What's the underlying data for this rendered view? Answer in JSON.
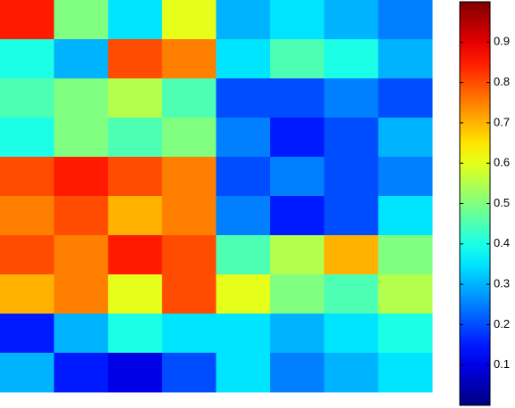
{
  "chart_data": {
    "type": "heatmap",
    "z": [
      [
        0.85,
        0.5,
        0.35,
        0.6,
        0.3,
        0.35,
        0.3,
        0.25
      ],
      [
        0.4,
        0.3,
        0.8,
        0.75,
        0.35,
        0.45,
        0.4,
        0.3
      ],
      [
        0.45,
        0.5,
        0.55,
        0.45,
        0.2,
        0.2,
        0.25,
        0.2
      ],
      [
        0.4,
        0.5,
        0.45,
        0.5,
        0.25,
        0.15,
        0.2,
        0.3
      ],
      [
        0.8,
        0.85,
        0.8,
        0.75,
        0.2,
        0.25,
        0.2,
        0.25
      ],
      [
        0.75,
        0.8,
        0.7,
        0.75,
        0.25,
        0.15,
        0.2,
        0.35
      ],
      [
        0.8,
        0.75,
        0.85,
        0.8,
        0.45,
        0.55,
        0.7,
        0.5
      ],
      [
        0.7,
        0.75,
        0.6,
        0.8,
        0.6,
        0.5,
        0.45,
        0.55
      ],
      [
        0.15,
        0.3,
        0.4,
        0.35,
        0.35,
        0.3,
        0.35,
        0.4
      ],
      [
        0.3,
        0.15,
        0.1,
        0.2,
        0.35,
        0.25,
        0.3,
        0.35
      ]
    ],
    "colormap": "jet",
    "clim": [
      0,
      1
    ],
    "cticks": [
      0.1,
      0.2,
      0.3,
      0.4,
      0.5,
      0.6,
      0.7,
      0.8,
      0.9
    ]
  }
}
